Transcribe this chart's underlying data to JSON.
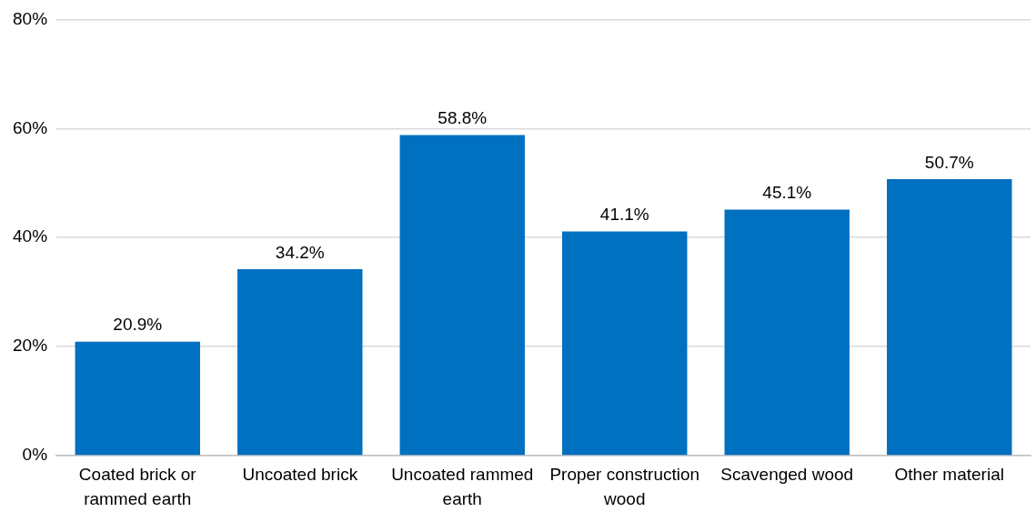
{
  "chart_data": {
    "type": "bar",
    "categories": [
      "Coated brick or rammed earth",
      "Uncoated brick",
      "Uncoated rammed earth",
      "Proper construction wood",
      "Scavenged wood",
      "Other material"
    ],
    "values": [
      20.9,
      34.2,
      58.8,
      41.1,
      45.1,
      50.7
    ],
    "value_labels": [
      "20.9%",
      "34.2%",
      "58.8%",
      "41.1%",
      "45.1%",
      "50.7%"
    ],
    "color": "#0070c0",
    "ylim": [
      0,
      80
    ],
    "yticks": [
      {
        "value": 0,
        "label": "0%"
      },
      {
        "value": 20,
        "label": "20%"
      },
      {
        "value": 40,
        "label": "40%"
      },
      {
        "value": 60,
        "label": "60%"
      },
      {
        "value": 80,
        "label": "80%"
      }
    ],
    "grid": "y",
    "legend": false
  }
}
